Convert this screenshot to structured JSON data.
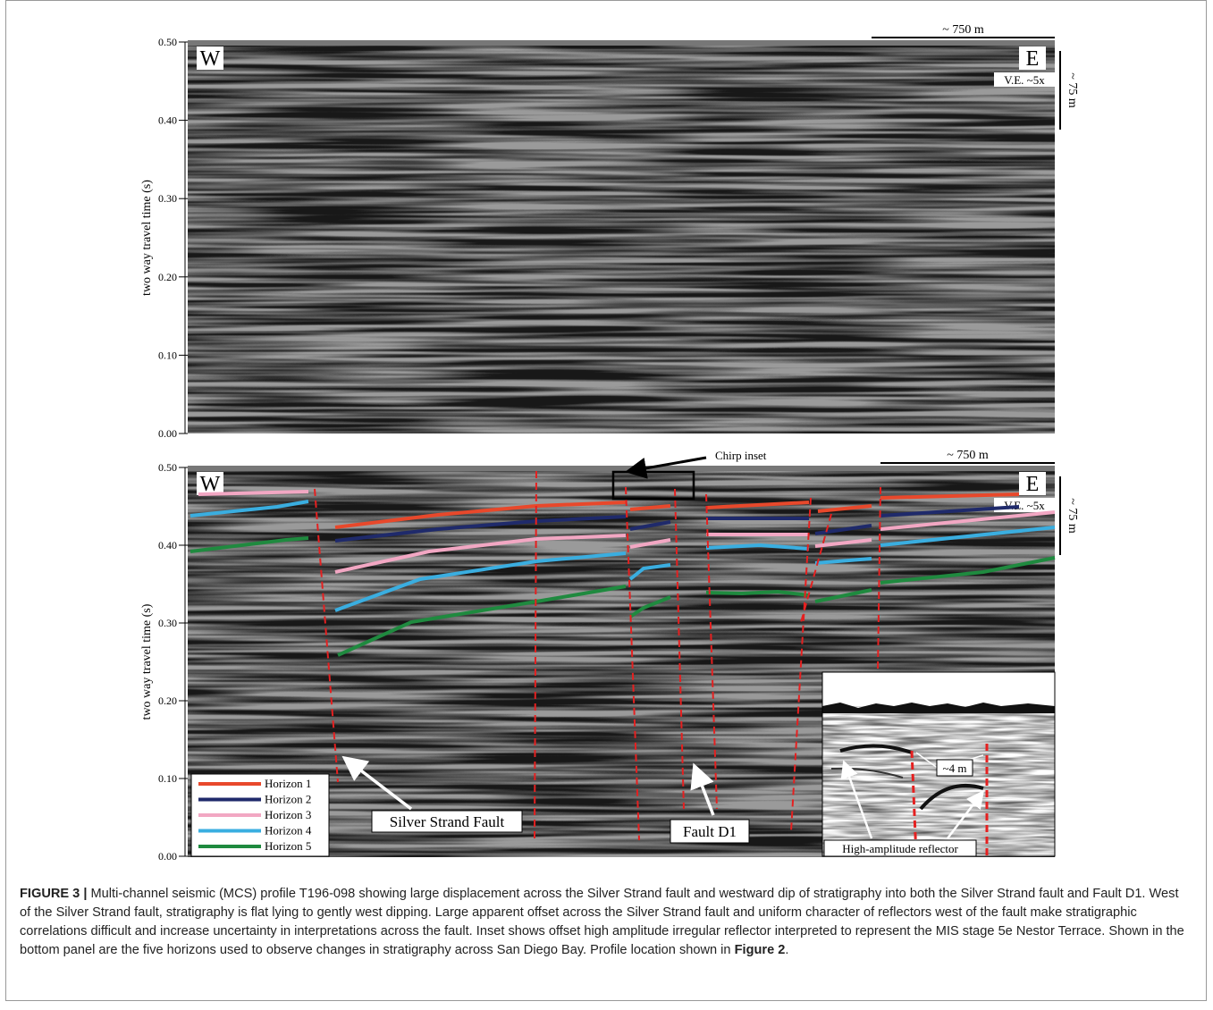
{
  "figure": {
    "panels": [
      {
        "ylabel": "two way travel time (s)",
        "ylim": [
          0,
          0.5
        ],
        "yticks": [
          {
            "value": 0,
            "label": "0.00"
          },
          {
            "value": 0.1,
            "label": "0.10"
          },
          {
            "value": 0.2,
            "label": "0.20"
          },
          {
            "value": 0.3,
            "label": "0.30"
          },
          {
            "value": 0.4,
            "label": "0.40"
          },
          {
            "value": 0.5,
            "label": "0.50"
          }
        ],
        "west": "W",
        "east": "E",
        "scale_bar": "~ 750 m",
        "vertical_scale": "~ 75 m",
        "ve": "V.E. ~5x"
      },
      {
        "ylabel": "two way travel time (s)",
        "ylim": [
          0,
          0.5
        ],
        "yticks": [
          {
            "value": 0,
            "label": "0.00"
          },
          {
            "value": 0.1,
            "label": "0.10"
          },
          {
            "value": 0.2,
            "label": "0.20"
          },
          {
            "value": 0.3,
            "label": "0.30"
          },
          {
            "value": 0.4,
            "label": "0.40"
          },
          {
            "value": 0.5,
            "label": "0.50"
          }
        ],
        "west": "W",
        "east": "E",
        "scale_bar": "~ 750 m",
        "vertical_scale": "~ 75 m",
        "ve": "V.E. ~5x",
        "horizons": [
          {
            "name": "Horizon 1",
            "color": "#e8482b"
          },
          {
            "name": "Horizon 2",
            "color": "#1f2a6b"
          },
          {
            "name": "Horizon 3",
            "color": "#f2a7c3"
          },
          {
            "name": "Horizon 4",
            "color": "#3aaee0"
          },
          {
            "name": "Horizon 5",
            "color": "#1f8a3f"
          }
        ],
        "annotations": {
          "chirp": "Chirp inset",
          "silver_strand": "Silver Strand Fault",
          "fault_d1": "Fault D1",
          "offset": "~4 m",
          "reflector": "High-amplitude reflector"
        }
      }
    ]
  },
  "caption": {
    "label": "FIGURE 3 |",
    "text": "Multi-channel seismic (MCS) profile T196-098 showing large displacement across the Silver Strand fault and westward dip of stratigraphy into both the Silver Strand fault and Fault D1. West of the Silver Strand fault, stratigraphy is flat lying to gently west dipping. Large apparent offset across the Silver Strand fault and uniform character of reflectors west of the fault make stratigraphic correlations difficult and increase uncertainty in interpretations across the fault. Inset shows offset high amplitude irregular reflector interpreted to represent the MIS stage 5e Nestor Terrace. Shown in the bottom panel are the five horizons used to observe changes in stratigraphy across San Diego Bay. Profile location shown in",
    "ref": "Figure 2",
    "end": "."
  }
}
